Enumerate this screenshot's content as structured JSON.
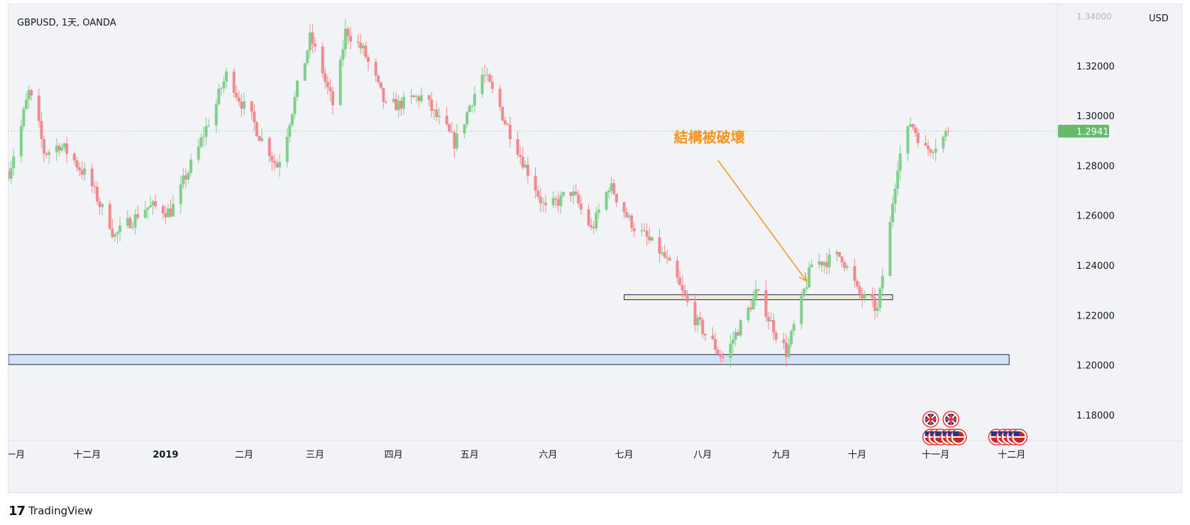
{
  "header": {
    "symbol_title": "GBPUSD, 1天, OANDA",
    "currency": "USD"
  },
  "brand": {
    "logo": "17",
    "name": "TradingView"
  },
  "annotation": {
    "text": "結構被破壞",
    "color": "#f7931e"
  },
  "colors": {
    "up": "#7fd08a",
    "down": "#f08a8e",
    "price_badge": "#66bb6a",
    "support_zone_fill": "#cfe0f6",
    "support_zone_border": "#1f2a44",
    "resistance_zone_fill": "#f3e4d9",
    "resistance_zone_border": "#1f2a44"
  },
  "chart_data": {
    "type": "candlestick",
    "y_range": [
      1.17,
      1.345
    ],
    "y_ticks": [
      "1.32000",
      "1.30000",
      "1.28000",
      "1.26000",
      "1.24000",
      "1.22000",
      "1.20000",
      "1.18000"
    ],
    "y_tick_values": [
      1.32,
      1.3,
      1.28,
      1.26,
      1.24,
      1.22,
      1.2,
      1.18
    ],
    "top_cut_label": "1.34000",
    "last_price": "1.29411",
    "last_price_value": 1.29411,
    "x_range": [
      "2018-10-31",
      "2019-12-19"
    ],
    "x_ticks": [
      {
        "label": "十一月",
        "date": "2018-11-01"
      },
      {
        "label": "十二月",
        "date": "2018-12-01"
      },
      {
        "label": "2019",
        "date": "2019-01-01"
      },
      {
        "label": "二月",
        "date": "2019-02-01"
      },
      {
        "label": "三月",
        "date": "2019-03-01"
      },
      {
        "label": "四月",
        "date": "2019-04-01"
      },
      {
        "label": "五月",
        "date": "2019-05-01"
      },
      {
        "label": "六月",
        "date": "2019-06-01"
      },
      {
        "label": "七月",
        "date": "2019-07-01"
      },
      {
        "label": "八月",
        "date": "2019-08-01"
      },
      {
        "label": "九月",
        "date": "2019-09-01"
      },
      {
        "label": "十月",
        "date": "2019-10-01"
      },
      {
        "label": "十一月",
        "date": "2019-11-01"
      },
      {
        "label": "十二月",
        "date": "2019-12-01"
      }
    ],
    "zones": [
      {
        "name": "support",
        "from_date": "2018-10-31",
        "to_date": "2019-11-30",
        "low": 1.2005,
        "high": 1.2045
      },
      {
        "name": "structure",
        "from_date": "2019-07-01",
        "to_date": "2019-10-15",
        "low": 1.2265,
        "high": 1.2285
      }
    ],
    "arrow": {
      "from_date": "2019-08-07",
      "from_price": 1.2825,
      "to_date": "2019-09-11",
      "to_price": 1.234
    },
    "path_anchors": [
      {
        "date": "2018-10-31",
        "price": 1.278
      },
      {
        "date": "2018-11-08",
        "price": 1.31
      },
      {
        "date": "2018-11-14",
        "price": 1.285
      },
      {
        "date": "2018-11-20",
        "price": 1.289
      },
      {
        "date": "2018-11-30",
        "price": 1.277
      },
      {
        "date": "2018-12-12",
        "price": 1.252
      },
      {
        "date": "2018-12-24",
        "price": 1.264
      },
      {
        "date": "2019-01-03",
        "price": 1.262
      },
      {
        "date": "2019-01-14",
        "price": 1.288
      },
      {
        "date": "2019-01-25",
        "price": 1.317
      },
      {
        "date": "2019-02-04",
        "price": 1.298
      },
      {
        "date": "2019-02-14",
        "price": 1.28
      },
      {
        "date": "2019-02-27",
        "price": 1.332
      },
      {
        "date": "2019-03-08",
        "price": 1.304
      },
      {
        "date": "2019-03-13",
        "price": 1.335
      },
      {
        "date": "2019-03-20",
        "price": 1.326
      },
      {
        "date": "2019-03-29",
        "price": 1.303
      },
      {
        "date": "2019-04-12",
        "price": 1.308
      },
      {
        "date": "2019-04-25",
        "price": 1.289
      },
      {
        "date": "2019-05-06",
        "price": 1.318
      },
      {
        "date": "2019-05-31",
        "price": 1.262
      },
      {
        "date": "2019-06-10",
        "price": 1.27
      },
      {
        "date": "2019-06-18",
        "price": 1.254
      },
      {
        "date": "2019-06-25",
        "price": 1.273
      },
      {
        "date": "2019-07-03",
        "price": 1.258
      },
      {
        "date": "2019-07-17",
        "price": 1.243
      },
      {
        "date": "2019-07-29",
        "price": 1.218
      },
      {
        "date": "2019-08-09",
        "price": 1.203
      },
      {
        "date": "2019-08-22",
        "price": 1.229
      },
      {
        "date": "2019-09-03",
        "price": 1.205
      },
      {
        "date": "2019-09-13",
        "price": 1.241
      },
      {
        "date": "2019-09-25",
        "price": 1.244
      },
      {
        "date": "2019-10-01",
        "price": 1.229
      },
      {
        "date": "2019-10-09",
        "price": 1.222
      },
      {
        "date": "2019-10-17",
        "price": 1.283
      },
      {
        "date": "2019-10-22",
        "price": 1.298
      },
      {
        "date": "2019-10-28",
        "price": 1.286
      },
      {
        "date": "2019-11-06",
        "price": 1.2941
      }
    ],
    "event_markers": [
      {
        "date": "2019-10-30",
        "flag": "GB",
        "row": 1
      },
      {
        "date": "2019-11-07",
        "flag": "GB",
        "row": 1
      },
      {
        "date": "2019-10-30",
        "flag": "US",
        "row": 0
      },
      {
        "date": "2019-11-01",
        "flag": "US",
        "row": 0
      },
      {
        "date": "2019-11-03",
        "flag": "US",
        "row": 0
      },
      {
        "date": "2019-11-06",
        "flag": "US",
        "row": 0
      },
      {
        "date": "2019-11-08",
        "flag": "US",
        "row": 0
      },
      {
        "date": "2019-11-10",
        "flag": "US",
        "row": 0
      },
      {
        "date": "2019-11-25",
        "flag": "US",
        "row": 0
      },
      {
        "date": "2019-11-28",
        "flag": "US",
        "row": 0
      },
      {
        "date": "2019-11-30",
        "flag": "US",
        "row": 0
      },
      {
        "date": "2019-12-02",
        "flag": "US",
        "row": 0
      },
      {
        "date": "2019-12-04",
        "flag": "US",
        "row": 0
      }
    ]
  }
}
